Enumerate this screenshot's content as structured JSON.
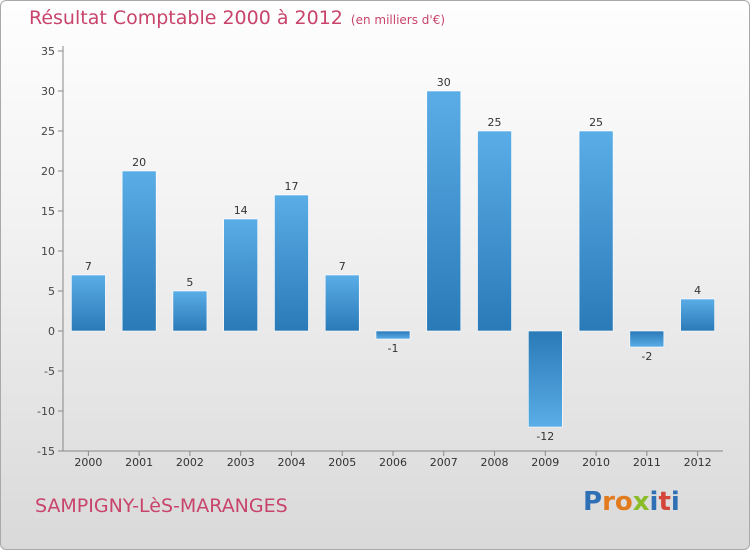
{
  "header": {
    "title": "Résultat Comptable 2000 à 2012",
    "subtitle": "(en milliers d'€)"
  },
  "footer": {
    "commune": "SAMPIGNY-LèS-MARANGES",
    "logo_text": "Proxiti"
  },
  "colors": {
    "title": "#c8446b",
    "bar_light": "#5aade6",
    "bar_dark": "#2a7ab8",
    "logo": [
      "#2f6fb5",
      "#e27a1e",
      "#e27a1e",
      "#8bbd2b",
      "#2f6fb5",
      "#d4453a",
      "#2f6fb5"
    ]
  },
  "chart_data": {
    "type": "bar",
    "title": "Résultat Comptable 2000 à 2012",
    "subtitle": "(en milliers d'€)",
    "categories": [
      "2000",
      "2001",
      "2002",
      "2003",
      "2004",
      "2005",
      "2006",
      "2007",
      "2008",
      "2009",
      "2010",
      "2011",
      "2012"
    ],
    "values": [
      7,
      20,
      5,
      14,
      17,
      7,
      -1,
      30,
      25,
      -12,
      25,
      -2,
      4
    ],
    "labels": [
      "7",
      "20",
      "5",
      "14",
      "17",
      "7",
      "-1",
      "30",
      "25",
      "-12",
      "25",
      "-2",
      "4"
    ],
    "ylim": [
      -15,
      35
    ],
    "yticks": [
      35,
      30,
      25,
      20,
      15,
      10,
      5,
      0,
      -5,
      -10,
      -15
    ],
    "ytick_labels": [
      "35",
      "30",
      "25",
      "20",
      "15",
      "10",
      "5",
      "0",
      "-5",
      "-10",
      "-15"
    ],
    "grid": false,
    "legend": "none"
  }
}
